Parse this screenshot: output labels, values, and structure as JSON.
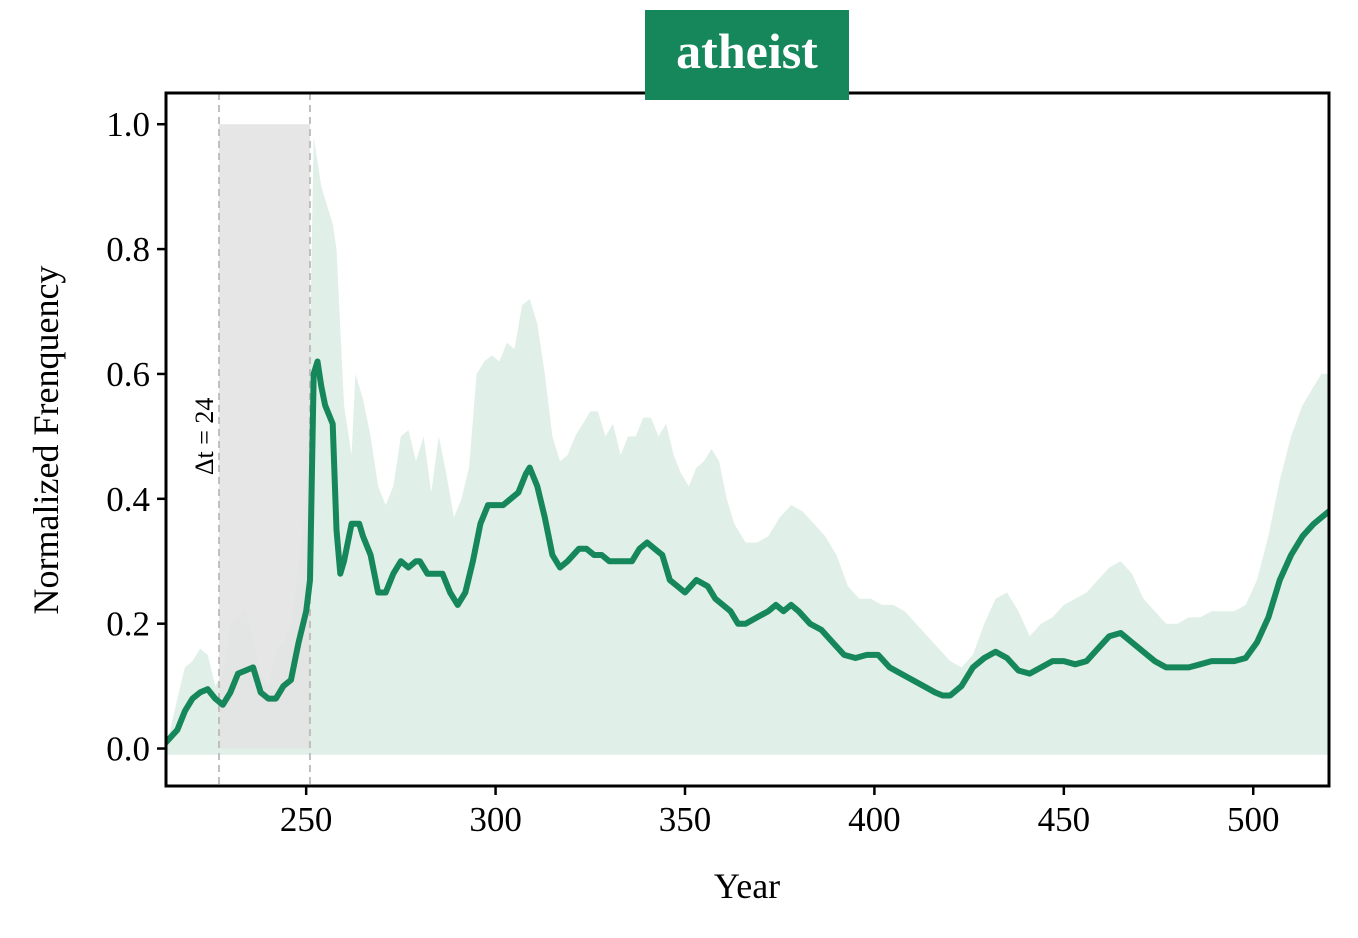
{
  "colors": {
    "accent": "#15875a",
    "band": "#e0efe8",
    "window": "#e3e3e3",
    "guide": "#bfbfbf"
  },
  "chart_data": {
    "type": "line",
    "title": "atheist",
    "xlabel": "Year",
    "ylabel": "Normalized Frenquency",
    "xlim": [
      213,
      520
    ],
    "ylim": [
      -0.06,
      1.05
    ],
    "xticks": [
      250,
      300,
      350,
      400,
      450,
      500
    ],
    "yticks": [
      0.0,
      0.2,
      0.4,
      0.6,
      0.8,
      1.0
    ],
    "xtick_labels": [
      "250",
      "300",
      "350",
      "400",
      "450",
      "500"
    ],
    "ytick_labels": [
      "0.0",
      "0.2",
      "0.4",
      "0.6",
      "0.8",
      "1.0"
    ],
    "grid": false,
    "series": [
      {
        "x": [
          213,
          216,
          218,
          220,
          222,
          224,
          226,
          228,
          230,
          232,
          234,
          236,
          238,
          240,
          242,
          244,
          246,
          248,
          250,
          251,
          252,
          253,
          254,
          255,
          257,
          258,
          259,
          260,
          262,
          264,
          265,
          267,
          269,
          271,
          273,
          275,
          277,
          279,
          280,
          282,
          284,
          286,
          288,
          290,
          292,
          294,
          296,
          298,
          300,
          302,
          304,
          306,
          308,
          309,
          311,
          313,
          315,
          317,
          319,
          322,
          324,
          326,
          328,
          330,
          332,
          334,
          336,
          338,
          340,
          342,
          344,
          346,
          348,
          350,
          353,
          356,
          358,
          360,
          362,
          364,
          366,
          369,
          372,
          374,
          376,
          378,
          380,
          383,
          386,
          389,
          392,
          395,
          398,
          401,
          404,
          407,
          410,
          413,
          416,
          418,
          420,
          423,
          426,
          429,
          432,
          435,
          438,
          441,
          444,
          447,
          450,
          453,
          456,
          459,
          462,
          465,
          468,
          471,
          474,
          477,
          480,
          483,
          486,
          489,
          492,
          495,
          498,
          501,
          504,
          507,
          510,
          513,
          516,
          518,
          520
        ],
        "y": [
          0.01,
          0.03,
          0.06,
          0.08,
          0.09,
          0.095,
          0.08,
          0.07,
          0.09,
          0.12,
          0.125,
          0.13,
          0.09,
          0.08,
          0.08,
          0.1,
          0.11,
          0.17,
          0.22,
          0.27,
          0.6,
          0.62,
          0.58,
          0.55,
          0.52,
          0.35,
          0.28,
          0.3,
          0.36,
          0.36,
          0.34,
          0.31,
          0.25,
          0.25,
          0.28,
          0.3,
          0.29,
          0.3,
          0.3,
          0.28,
          0.28,
          0.28,
          0.25,
          0.23,
          0.25,
          0.3,
          0.36,
          0.39,
          0.39,
          0.39,
          0.4,
          0.41,
          0.44,
          0.45,
          0.42,
          0.37,
          0.31,
          0.29,
          0.3,
          0.32,
          0.32,
          0.31,
          0.31,
          0.3,
          0.3,
          0.3,
          0.3,
          0.32,
          0.33,
          0.32,
          0.31,
          0.27,
          0.26,
          0.25,
          0.27,
          0.26,
          0.24,
          0.23,
          0.22,
          0.2,
          0.2,
          0.21,
          0.22,
          0.23,
          0.22,
          0.23,
          0.22,
          0.2,
          0.19,
          0.17,
          0.15,
          0.145,
          0.15,
          0.15,
          0.13,
          0.12,
          0.11,
          0.1,
          0.09,
          0.085,
          0.085,
          0.1,
          0.13,
          0.145,
          0.155,
          0.145,
          0.125,
          0.12,
          0.13,
          0.14,
          0.14,
          0.135,
          0.14,
          0.16,
          0.18,
          0.185,
          0.17,
          0.155,
          0.14,
          0.13,
          0.13,
          0.13,
          0.135,
          0.14,
          0.14,
          0.14,
          0.145,
          0.17,
          0.21,
          0.27,
          0.31,
          0.34,
          0.36,
          0.37,
          0.38
        ]
      }
    ],
    "band": {
      "x": [
        213,
        216,
        218,
        220,
        222,
        224,
        226,
        228,
        230,
        232,
        234,
        236,
        238,
        240,
        242,
        244,
        246,
        248,
        250,
        251,
        252,
        254,
        255,
        257,
        258,
        260,
        262,
        263,
        265,
        267,
        269,
        271,
        273,
        275,
        277,
        279,
        281,
        283,
        285,
        287,
        289,
        291,
        293,
        295,
        297,
        299,
        301,
        303,
        305,
        307,
        309,
        311,
        313,
        315,
        317,
        319,
        321,
        323,
        325,
        327,
        329,
        331,
        333,
        335,
        337,
        339,
        341,
        343,
        345,
        347,
        349,
        351,
        353,
        355,
        357,
        359,
        361,
        363,
        366,
        369,
        372,
        375,
        378,
        381,
        384,
        387,
        390,
        393,
        396,
        399,
        402,
        405,
        408,
        411,
        414,
        417,
        420,
        423,
        426,
        429,
        432,
        435,
        438,
        441,
        444,
        447,
        450,
        453,
        456,
        459,
        462,
        465,
        468,
        471,
        474,
        477,
        480,
        483,
        486,
        489,
        492,
        495,
        498,
        501,
        504,
        507,
        510,
        513,
        516,
        518,
        520
      ],
      "upper": [
        0.0,
        0.08,
        0.13,
        0.14,
        0.16,
        0.15,
        0.1,
        0.12,
        0.2,
        0.21,
        0.22,
        0.18,
        0.12,
        0.1,
        0.16,
        0.17,
        0.2,
        0.3,
        0.4,
        0.65,
        0.98,
        0.9,
        0.88,
        0.84,
        0.8,
        0.55,
        0.47,
        0.6,
        0.56,
        0.5,
        0.42,
        0.39,
        0.42,
        0.5,
        0.51,
        0.46,
        0.5,
        0.41,
        0.5,
        0.44,
        0.37,
        0.4,
        0.45,
        0.6,
        0.62,
        0.63,
        0.62,
        0.65,
        0.64,
        0.71,
        0.72,
        0.68,
        0.6,
        0.5,
        0.46,
        0.47,
        0.5,
        0.52,
        0.54,
        0.54,
        0.5,
        0.52,
        0.47,
        0.5,
        0.5,
        0.53,
        0.53,
        0.5,
        0.52,
        0.47,
        0.44,
        0.42,
        0.45,
        0.46,
        0.48,
        0.46,
        0.4,
        0.36,
        0.33,
        0.33,
        0.34,
        0.37,
        0.39,
        0.38,
        0.36,
        0.34,
        0.31,
        0.26,
        0.24,
        0.24,
        0.23,
        0.23,
        0.22,
        0.2,
        0.18,
        0.16,
        0.14,
        0.13,
        0.15,
        0.2,
        0.24,
        0.25,
        0.22,
        0.18,
        0.2,
        0.21,
        0.23,
        0.24,
        0.25,
        0.27,
        0.29,
        0.3,
        0.28,
        0.24,
        0.22,
        0.2,
        0.2,
        0.21,
        0.21,
        0.22,
        0.22,
        0.22,
        0.23,
        0.27,
        0.34,
        0.43,
        0.5,
        0.55,
        0.58,
        0.6,
        0.6
      ],
      "lower": -0.01
    },
    "highlight_window": {
      "x_start": 227,
      "x_end": 251,
      "y_top": 1.0,
      "y_bottom": 0.0
    },
    "annotation": "Δt = 24"
  }
}
